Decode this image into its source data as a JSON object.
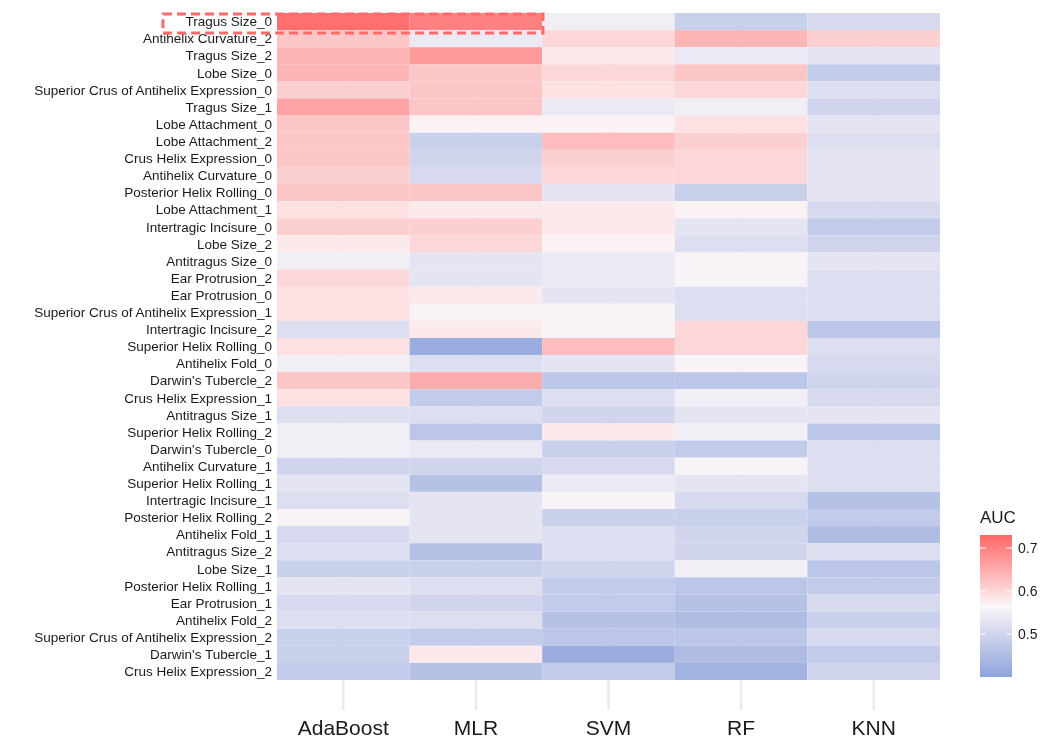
{
  "chart_data": {
    "type": "heatmap",
    "clabel": "AUC",
    "grid": "x",
    "categories": [
      "AdaBoost",
      "MLR",
      "SVM",
      "RF",
      "KNN"
    ],
    "y_categories": [
      "Tragus Size_0",
      "Antihelix Curvature_2",
      "Tragus Size_2",
      "Lobe Size_0",
      "Superior Crus of Antihelix Expression_0",
      "Tragus Size_1",
      "Lobe Attachment_0",
      "Lobe Attachment_2",
      "Crus Helix Expression_0",
      "Antihelix Curvature_0",
      "Posterior Helix Rolling_0",
      "Lobe Attachment_1",
      "Intertragic Incisure_0",
      "Lobe Size_2",
      "Antitragus Size_0",
      "Ear Protrusion_2",
      "Ear Protrusion_0",
      "Superior Crus of Antihelix Expression_1",
      "Intertragic Incisure_2",
      "Superior Helix Rolling_0",
      "Antihelix Fold_0",
      "Darwin's Tubercle_2",
      "Crus Helix Expression_1",
      "Antitragus Size_1",
      "Superior Helix Rolling_2",
      "Darwin's Tubercle_0",
      "Antihelix Curvature_1",
      "Superior Helix Rolling_1",
      "Intertragic Incisure_1",
      "Posterior Helix Rolling_2",
      "Antihelix Fold_1",
      "Antitragus Size_2",
      "Lobe Size_1",
      "Posterior Helix Rolling_1",
      "Ear Protrusion_1",
      "Antihelix Fold_2",
      "Superior Crus of Antihelix Expression_2",
      "Darwin's Tubercle_1",
      "Crus Helix Expression_2"
    ],
    "cells": [
      [
        0.72,
        0.7,
        0.55,
        0.49,
        0.51
      ],
      [
        0.62,
        0.54,
        0.6,
        0.64,
        0.61
      ],
      [
        0.64,
        0.67,
        0.58,
        0.54,
        0.53
      ],
      [
        0.64,
        0.62,
        0.6,
        0.62,
        0.48
      ],
      [
        0.61,
        0.62,
        0.59,
        0.6,
        0.52
      ],
      [
        0.66,
        0.62,
        0.54,
        0.55,
        0.5
      ],
      [
        0.62,
        0.57,
        0.57,
        0.59,
        0.53
      ],
      [
        0.62,
        0.49,
        0.63,
        0.61,
        0.52
      ],
      [
        0.62,
        0.5,
        0.61,
        0.6,
        0.53
      ],
      [
        0.61,
        0.51,
        0.6,
        0.6,
        0.53
      ],
      [
        0.62,
        0.62,
        0.53,
        0.49,
        0.53
      ],
      [
        0.59,
        0.58,
        0.58,
        0.57,
        0.51
      ],
      [
        0.61,
        0.61,
        0.58,
        0.53,
        0.48
      ],
      [
        0.58,
        0.6,
        0.57,
        0.52,
        0.5
      ],
      [
        0.55,
        0.53,
        0.54,
        0.56,
        0.53
      ],
      [
        0.6,
        0.53,
        0.54,
        0.56,
        0.52
      ],
      [
        0.59,
        0.58,
        0.53,
        0.52,
        0.52
      ],
      [
        0.59,
        0.56,
        0.56,
        0.52,
        0.52
      ],
      [
        0.52,
        0.58,
        0.56,
        0.6,
        0.47
      ],
      [
        0.59,
        0.42,
        0.63,
        0.6,
        0.52
      ],
      [
        0.55,
        0.52,
        0.53,
        0.56,
        0.51
      ],
      [
        0.62,
        0.65,
        0.47,
        0.47,
        0.5
      ],
      [
        0.59,
        0.48,
        0.52,
        0.55,
        0.51
      ],
      [
        0.52,
        0.52,
        0.5,
        0.53,
        0.53
      ],
      [
        0.55,
        0.47,
        0.58,
        0.55,
        0.47
      ],
      [
        0.55,
        0.54,
        0.49,
        0.48,
        0.52
      ],
      [
        0.5,
        0.5,
        0.51,
        0.56,
        0.52
      ],
      [
        0.53,
        0.46,
        0.54,
        0.53,
        0.52
      ],
      [
        0.52,
        0.53,
        0.56,
        0.51,
        0.46
      ],
      [
        0.56,
        0.53,
        0.49,
        0.49,
        0.48
      ],
      [
        0.51,
        0.53,
        0.52,
        0.5,
        0.45
      ],
      [
        0.52,
        0.46,
        0.52,
        0.5,
        0.52
      ],
      [
        0.49,
        0.49,
        0.5,
        0.55,
        0.47
      ],
      [
        0.53,
        0.52,
        0.48,
        0.47,
        0.48
      ],
      [
        0.51,
        0.5,
        0.48,
        0.46,
        0.51
      ],
      [
        0.52,
        0.52,
        0.46,
        0.45,
        0.49
      ],
      [
        0.49,
        0.48,
        0.47,
        0.47,
        0.51
      ],
      [
        0.49,
        0.58,
        0.42,
        0.45,
        0.48
      ],
      [
        0.48,
        0.46,
        0.48,
        0.43,
        0.5
      ]
    ],
    "clim": [
      0.4,
      0.73
    ],
    "cticks": [
      0.5,
      0.6,
      0.7
    ]
  }
}
